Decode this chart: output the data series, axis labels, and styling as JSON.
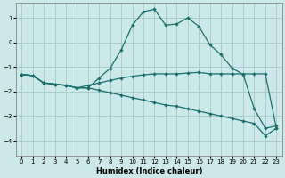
{
  "xlabel": "Humidex (Indice chaleur)",
  "background_color": "#cce8e8",
  "grid_color": "#aacccc",
  "line_color": "#1a6e6e",
  "xlim": [
    -0.5,
    23.5
  ],
  "ylim": [
    -4.6,
    1.6
  ],
  "yticks": [
    -4,
    -3,
    -2,
    -1,
    0,
    1
  ],
  "xticks": [
    0,
    1,
    2,
    3,
    4,
    5,
    6,
    7,
    8,
    9,
    10,
    11,
    12,
    13,
    14,
    15,
    16,
    17,
    18,
    19,
    20,
    21,
    22,
    23
  ],
  "line1_x": [
    0,
    1,
    2,
    3,
    4,
    5,
    6,
    7,
    8,
    9,
    10,
    11,
    12,
    13,
    14,
    15,
    16,
    17,
    18,
    19,
    20,
    21,
    22,
    23
  ],
  "line1_y": [
    -1.3,
    -1.35,
    -1.65,
    -1.7,
    -1.75,
    -1.85,
    -1.85,
    -1.45,
    -1.05,
    -0.3,
    0.7,
    1.25,
    1.35,
    0.7,
    0.75,
    1.0,
    0.65,
    -0.1,
    -0.5,
    -1.05,
    -1.3,
    -2.7,
    -3.5,
    -3.4
  ],
  "line2_x": [
    0,
    1,
    2,
    3,
    4,
    5,
    6,
    7,
    8,
    9,
    10,
    11,
    12,
    13,
    14,
    15,
    16,
    17,
    18,
    19,
    20,
    21,
    22,
    23
  ],
  "line2_y": [
    -1.3,
    -1.35,
    -1.65,
    -1.7,
    -1.75,
    -1.85,
    -1.75,
    -1.65,
    -1.55,
    -1.45,
    -1.38,
    -1.32,
    -1.28,
    -1.28,
    -1.28,
    -1.25,
    -1.22,
    -1.28,
    -1.28,
    -1.28,
    -1.28,
    -1.28,
    -1.28,
    -3.5
  ],
  "line3_x": [
    0,
    1,
    2,
    3,
    4,
    5,
    6,
    7,
    8,
    9,
    10,
    11,
    12,
    13,
    14,
    15,
    16,
    17,
    18,
    19,
    20,
    21,
    22,
    23
  ],
  "line3_y": [
    -1.3,
    -1.35,
    -1.65,
    -1.7,
    -1.75,
    -1.85,
    -1.85,
    -1.95,
    -2.05,
    -2.15,
    -2.25,
    -2.35,
    -2.45,
    -2.55,
    -2.6,
    -2.7,
    -2.8,
    -2.9,
    -3.0,
    -3.1,
    -3.2,
    -3.3,
    -3.8,
    -3.5
  ]
}
